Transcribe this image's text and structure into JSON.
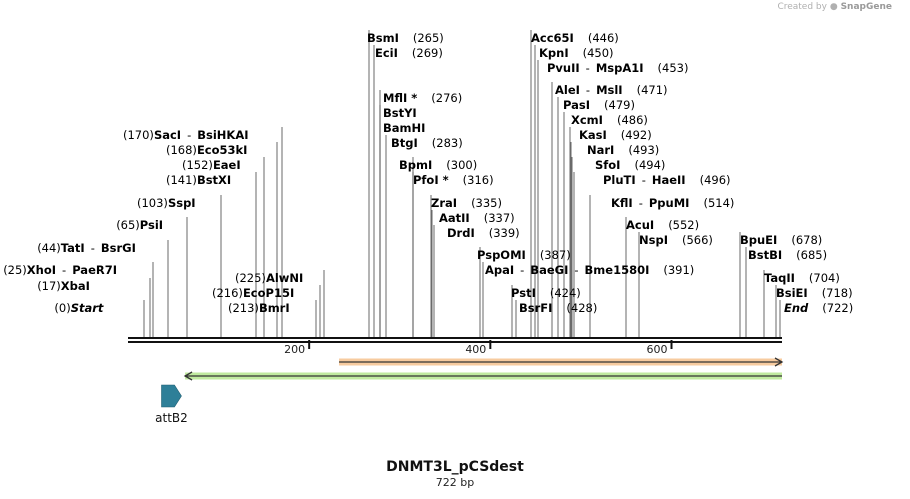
{
  "credit": {
    "prefix": "Created by",
    "brand": "SnapGene"
  },
  "map": {
    "title": "DNMT3L_pCSdest",
    "length_label": "722 bp",
    "length_bp": 722,
    "ticks": [
      {
        "bp": 200,
        "label": "200"
      },
      {
        "bp": 400,
        "label": "400"
      },
      {
        "bp": 600,
        "label": "600"
      }
    ],
    "features": [
      {
        "name": "orange-arrow-feature",
        "start_bp": 233,
        "end_bp": 722,
        "color": "#f0a050",
        "label": ""
      },
      {
        "name": "green-arrow-feature",
        "start_bp": 63,
        "end_bp": 722,
        "color": "#8cd850",
        "label": ""
      },
      {
        "name": "attb2-feature",
        "start_bp": 37,
        "end_bp": 59,
        "color": "#2e7f98",
        "label": "attB2"
      }
    ]
  },
  "sites": [
    {
      "pos": "(0)",
      "names": [
        "Start"
      ],
      "italic": true
    },
    {
      "pos": "(17)",
      "names": [
        "XbaI"
      ]
    },
    {
      "pos": "(25)",
      "names": [
        "XhoI",
        "PaeR7I"
      ]
    },
    {
      "pos": "(44)",
      "names": [
        "TatI",
        "BsrGI"
      ]
    },
    {
      "pos": "(65)",
      "names": [
        "PsiI"
      ]
    },
    {
      "pos": "(103)",
      "names": [
        "SspI"
      ]
    },
    {
      "pos": "(141)",
      "names": [
        "BstXI"
      ]
    },
    {
      "pos": "(152)",
      "names": [
        "EaeI"
      ]
    },
    {
      "pos": "(168)",
      "names": [
        "Eco53kI"
      ]
    },
    {
      "pos": "(170)",
      "names": [
        "SacI",
        "BsiHKAI"
      ]
    },
    {
      "pos": "(213)",
      "names": [
        "BmrI"
      ]
    },
    {
      "pos": "(216)",
      "names": [
        "EcoP15I"
      ]
    },
    {
      "pos": "(225)",
      "names": [
        "AlwNI"
      ]
    },
    {
      "pos": "(265)",
      "names": [
        "BsmI"
      ]
    },
    {
      "pos": "(269)",
      "names": [
        "EciI"
      ]
    },
    {
      "pos": "(276)",
      "names": [
        "MflI *"
      ]
    },
    {
      "pos": "",
      "names": [
        "BstYI"
      ]
    },
    {
      "pos": "",
      "names": [
        "BamHI"
      ]
    },
    {
      "pos": "(283)",
      "names": [
        "BtgI"
      ]
    },
    {
      "pos": "(300)",
      "names": [
        "BpmI"
      ]
    },
    {
      "pos": "(316)",
      "names": [
        "PfoI *"
      ]
    },
    {
      "pos": "(335)",
      "names": [
        "ZraI"
      ]
    },
    {
      "pos": "(337)",
      "names": [
        "AatII"
      ]
    },
    {
      "pos": "(339)",
      "names": [
        "DrdI"
      ]
    },
    {
      "pos": "(387)",
      "names": [
        "PspOMI"
      ]
    },
    {
      "pos": "(391)",
      "names": [
        "ApaI",
        "BaeGI",
        "Bme1580I"
      ]
    },
    {
      "pos": "(424)",
      "names": [
        "PstI"
      ]
    },
    {
      "pos": "(428)",
      "names": [
        "BsrFI"
      ]
    },
    {
      "pos": "(446)",
      "names": [
        "Acc65I"
      ]
    },
    {
      "pos": "(450)",
      "names": [
        "KpnI"
      ]
    },
    {
      "pos": "(453)",
      "names": [
        "PvuII",
        "MspA1I"
      ]
    },
    {
      "pos": "(471)",
      "names": [
        "AleI",
        "MslI"
      ]
    },
    {
      "pos": "(479)",
      "names": [
        "PasI"
      ]
    },
    {
      "pos": "(486)",
      "names": [
        "XcmI"
      ]
    },
    {
      "pos": "(492)",
      "names": [
        "KasI"
      ]
    },
    {
      "pos": "(493)",
      "names": [
        "NarI"
      ]
    },
    {
      "pos": "(494)",
      "names": [
        "SfoI"
      ]
    },
    {
      "pos": "(496)",
      "names": [
        "PluTI",
        "HaeII"
      ]
    },
    {
      "pos": "(514)",
      "names": [
        "KflI",
        "PpuMI"
      ]
    },
    {
      "pos": "(552)",
      "names": [
        "AcuI"
      ]
    },
    {
      "pos": "(566)",
      "names": [
        "NspI"
      ]
    },
    {
      "pos": "(678)",
      "names": [
        "BpuEI"
      ]
    },
    {
      "pos": "(685)",
      "names": [
        "BstBI"
      ]
    },
    {
      "pos": "(704)",
      "names": [
        "TaqII"
      ]
    },
    {
      "pos": "(718)",
      "names": [
        "BsiEI"
      ]
    },
    {
      "pos": "(722)",
      "names": [
        "End"
      ],
      "italic": true
    }
  ]
}
